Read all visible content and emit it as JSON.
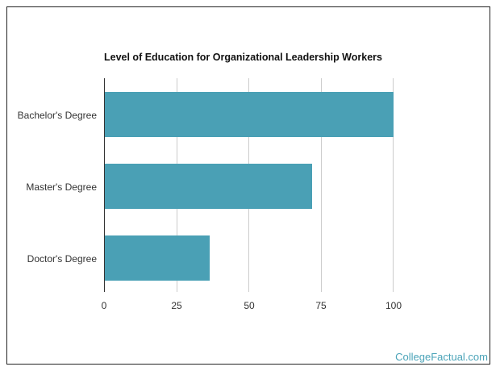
{
  "chart_data": {
    "type": "bar",
    "orientation": "horizontal",
    "title": "Level of Education for Organizational Leadership Workers",
    "categories": [
      "Bachelor's Degree",
      "Master's Degree",
      "Doctor's Degree"
    ],
    "values": [
      100,
      72,
      36.5
    ],
    "xlabel": "",
    "ylabel": "",
    "xlim": [
      0,
      100
    ],
    "xticks": [
      "0",
      "25",
      "50",
      "75",
      "100"
    ],
    "grid": true,
    "legend": null,
    "bar_color": "#4aa0b5"
  },
  "branding": {
    "text": "CollegeFactual.com",
    "color": "#4aa3b8"
  }
}
